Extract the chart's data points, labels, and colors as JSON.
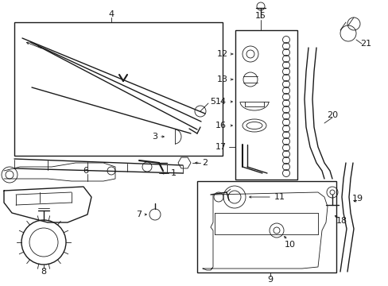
{
  "bg_color": "#ffffff",
  "line_color": "#1a1a1a",
  "fig_width": 4.89,
  "fig_height": 3.6,
  "dpi": 100,
  "label_fontsize": 8.0,
  "small_fontsize": 6.5
}
